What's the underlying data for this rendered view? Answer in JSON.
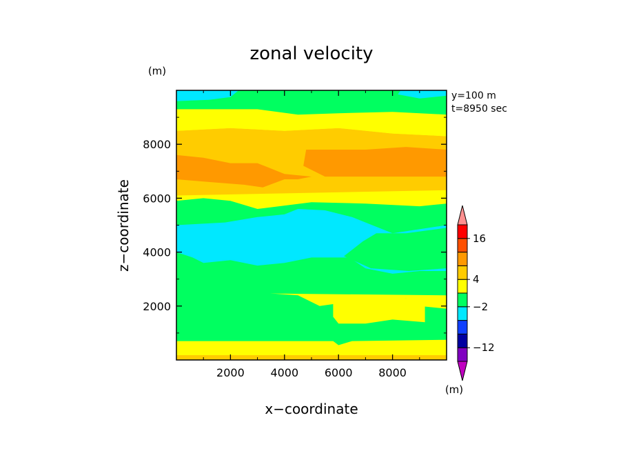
{
  "chart_data": {
    "type": "heatmap",
    "title": "zonal velocity",
    "xlabel": "x−coordinate",
    "ylabel": "z−coordinate",
    "y_unit": "(m)",
    "colorbar_unit": "(m)",
    "annotations": [
      "y=100 m",
      "t=8950 sec"
    ],
    "xlim": [
      0,
      10000
    ],
    "ylim": [
      0,
      10000
    ],
    "x_ticks": [
      2000,
      4000,
      6000,
      8000
    ],
    "x_tick_labels": [
      "2000",
      "4000",
      "6000",
      "8000"
    ],
    "y_ticks": [
      2000,
      4000,
      6000,
      8000
    ],
    "y_tick_labels": [
      "2000",
      "4000",
      "6000",
      "8000"
    ],
    "grid": false,
    "colorbar": {
      "position": "right",
      "colors": [
        "#c000c0",
        "#8000c0",
        "#0000a0",
        "#1040ff",
        "#00e8ff",
        "#00ff60",
        "#ffff00",
        "#ffcc00",
        "#ff9900",
        "#ff5000",
        "#ff0000",
        "#ff9090"
      ],
      "labeled_levels": [
        {
          "index": 2,
          "label": "−12"
        },
        {
          "index": 5,
          "label": "−2"
        },
        {
          "index": 7,
          "label": "4"
        },
        {
          "index": 10,
          "label": "16"
        }
      ]
    },
    "levels_legend": {
      "cyan": "#00e8ff",
      "green": "#00ff60",
      "yellow": "#ffff00",
      "gold": "#ffcc00",
      "orange": "#ff9900"
    },
    "regions": [
      {
        "color": "#ffff00",
        "points": [
          [
            0,
            0
          ],
          [
            10000,
            0
          ],
          [
            10000,
            10000
          ],
          [
            0,
            10000
          ]
        ]
      },
      {
        "color": "#ffcc00",
        "points": [
          [
            0,
            0
          ],
          [
            10000,
            0
          ],
          [
            10000,
            180
          ],
          [
            0,
            180
          ]
        ]
      },
      {
        "color": "#00ff60",
        "points": [
          [
            0,
            700
          ],
          [
            5800,
            700
          ],
          [
            6000,
            550
          ],
          [
            6500,
            700
          ],
          [
            10000,
            750
          ],
          [
            10000,
            1900
          ],
          [
            9000,
            2000
          ],
          [
            8500,
            2300
          ],
          [
            7500,
            2100
          ],
          [
            6000,
            2100
          ],
          [
            5300,
            2000
          ],
          [
            4500,
            2400
          ],
          [
            3000,
            2500
          ],
          [
            1000,
            2600
          ],
          [
            0,
            2500
          ]
        ]
      },
      {
        "color": "#ffff00",
        "points": [
          [
            5800,
            2100
          ],
          [
            8500,
            2300
          ],
          [
            9200,
            2050
          ],
          [
            9200,
            1400
          ],
          [
            8000,
            1500
          ],
          [
            7000,
            1350
          ],
          [
            6000,
            1350
          ],
          [
            5800,
            1600
          ]
        ]
      },
      {
        "color": "#00ff60",
        "points": [
          [
            0,
            2500
          ],
          [
            10000,
            2400
          ],
          [
            10000,
            5800
          ],
          [
            9000,
            5700
          ],
          [
            7000,
            5800
          ],
          [
            5000,
            5850
          ],
          [
            3000,
            5600
          ],
          [
            2000,
            5900
          ],
          [
            1000,
            6000
          ],
          [
            0,
            5900
          ]
        ]
      },
      {
        "color": "#00e8ff",
        "points": [
          [
            0,
            4000
          ],
          [
            600,
            3800
          ],
          [
            1000,
            3600
          ],
          [
            2000,
            3700
          ],
          [
            3000,
            3500
          ],
          [
            4000,
            3600
          ],
          [
            5000,
            3800
          ],
          [
            6400,
            3800
          ],
          [
            7000,
            3400
          ],
          [
            8000,
            3200
          ],
          [
            9000,
            3300
          ],
          [
            10000,
            3300
          ],
          [
            10000,
            5000
          ],
          [
            8000,
            4700
          ],
          [
            7000,
            5100
          ],
          [
            6500,
            5300
          ],
          [
            5500,
            5550
          ],
          [
            4500,
            5600
          ],
          [
            4000,
            5400
          ],
          [
            3000,
            5300
          ],
          [
            1800,
            5100
          ],
          [
            0,
            5000
          ]
        ]
      },
      {
        "color": "#00ff60",
        "points": [
          [
            6200,
            3850
          ],
          [
            7200,
            3400
          ],
          [
            8600,
            3300
          ],
          [
            10000,
            3400
          ],
          [
            10000,
            4900
          ],
          [
            8500,
            4700
          ],
          [
            7400,
            4700
          ],
          [
            6900,
            4400
          ]
        ]
      },
      {
        "color": "#ffcc00",
        "points": [
          [
            0,
            6100
          ],
          [
            10000,
            6300
          ],
          [
            10000,
            8300
          ],
          [
            8000,
            8400
          ],
          [
            6000,
            8600
          ],
          [
            4000,
            8500
          ],
          [
            2000,
            8600
          ],
          [
            0,
            8500
          ]
        ]
      },
      {
        "color": "#ff9900",
        "points": [
          [
            0,
            6700
          ],
          [
            1200,
            6600
          ],
          [
            2500,
            6500
          ],
          [
            3200,
            6400
          ],
          [
            4000,
            6700
          ],
          [
            4500,
            6700
          ],
          [
            5000,
            6800
          ],
          [
            4000,
            6900
          ],
          [
            3000,
            7300
          ],
          [
            2000,
            7300
          ],
          [
            1000,
            7500
          ],
          [
            0,
            7600
          ]
        ]
      },
      {
        "color": "#ff9900",
        "points": [
          [
            4700,
            7200
          ],
          [
            5500,
            6800
          ],
          [
            7000,
            6800
          ],
          [
            10000,
            6800
          ],
          [
            10000,
            7800
          ],
          [
            8500,
            7900
          ],
          [
            7000,
            7800
          ],
          [
            6000,
            7800
          ],
          [
            4800,
            7800
          ]
        ]
      },
      {
        "color": "#ffff00",
        "points": [
          [
            0,
            8500
          ],
          [
            2000,
            8600
          ],
          [
            4000,
            8500
          ],
          [
            6000,
            8600
          ],
          [
            8000,
            8400
          ],
          [
            10000,
            8300
          ],
          [
            10000,
            9100
          ],
          [
            8000,
            9200
          ],
          [
            6000,
            9100
          ],
          [
            4000,
            9200
          ],
          [
            2000,
            9100
          ],
          [
            0,
            9100
          ]
        ]
      },
      {
        "color": "#00ff60",
        "points": [
          [
            0,
            9300
          ],
          [
            3000,
            9300
          ],
          [
            4500,
            9100
          ],
          [
            6000,
            9150
          ],
          [
            8000,
            9200
          ],
          [
            10000,
            9100
          ],
          [
            10000,
            10000
          ],
          [
            0,
            10000
          ]
        ]
      },
      {
        "color": "#00e8ff",
        "points": [
          [
            0,
            9600
          ],
          [
            1200,
            9650
          ],
          [
            2000,
            9750
          ],
          [
            2300,
            10000
          ],
          [
            0,
            10000
          ]
        ]
      },
      {
        "color": "#00e8ff",
        "points": [
          [
            8200,
            9850
          ],
          [
            9000,
            9700
          ],
          [
            10000,
            9800
          ],
          [
            10000,
            10000
          ],
          [
            8300,
            10000
          ]
        ]
      }
    ]
  }
}
